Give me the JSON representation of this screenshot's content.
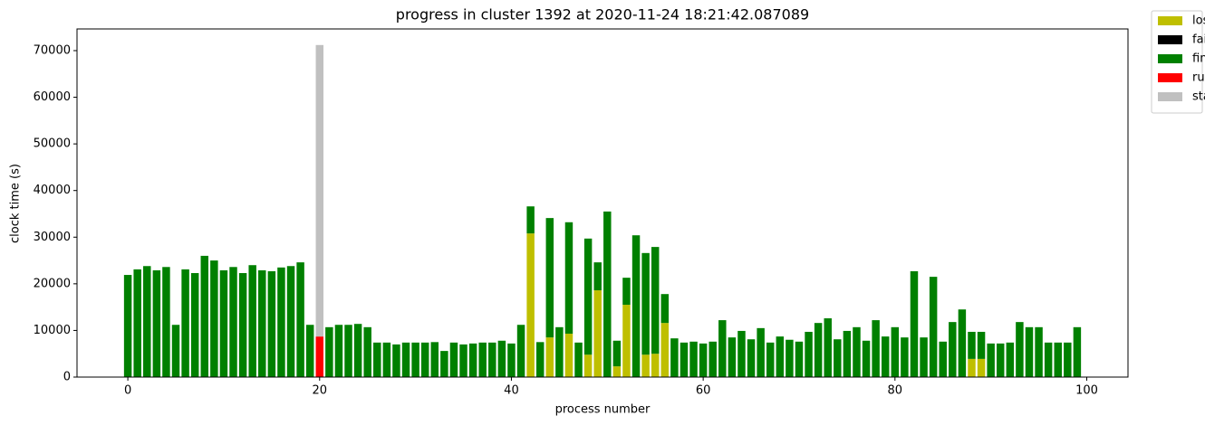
{
  "chart_data": {
    "type": "bar",
    "stacked": true,
    "title": "progress in cluster 1392 at 2020-11-24 18:21:42.087089",
    "xlabel": "process number",
    "ylabel": "clock time (s)",
    "x": [
      0,
      1,
      2,
      3,
      4,
      5,
      6,
      7,
      8,
      9,
      10,
      11,
      12,
      13,
      14,
      15,
      16,
      17,
      18,
      19,
      20,
      21,
      22,
      23,
      24,
      25,
      26,
      27,
      28,
      29,
      30,
      31,
      32,
      33,
      34,
      35,
      36,
      37,
      38,
      39,
      40,
      41,
      42,
      43,
      44,
      45,
      46,
      47,
      48,
      49,
      50,
      51,
      52,
      53,
      54,
      55,
      56,
      57,
      58,
      59,
      60,
      61,
      62,
      63,
      64,
      65,
      66,
      67,
      68,
      69,
      70,
      71,
      72,
      73,
      74,
      75,
      76,
      77,
      78,
      79,
      80,
      81,
      82,
      83,
      84,
      85,
      86,
      87,
      88,
      89,
      90,
      91,
      92,
      93,
      94,
      95,
      96,
      97,
      98,
      99
    ],
    "series": [
      {
        "name": "lost",
        "color": "#bfbf00",
        "values": [
          null,
          null,
          null,
          null,
          null,
          null,
          null,
          null,
          null,
          null,
          null,
          null,
          null,
          null,
          null,
          null,
          null,
          null,
          null,
          null,
          null,
          null,
          null,
          null,
          null,
          null,
          null,
          null,
          null,
          null,
          null,
          null,
          null,
          null,
          null,
          null,
          null,
          null,
          null,
          null,
          null,
          null,
          30800,
          null,
          8500,
          null,
          9300,
          null,
          4800,
          18600,
          null,
          2300,
          15500,
          null,
          4800,
          5000,
          11600,
          null,
          null,
          null,
          null,
          null,
          null,
          null,
          null,
          null,
          null,
          null,
          null,
          null,
          null,
          null,
          null,
          null,
          null,
          null,
          null,
          null,
          null,
          null,
          null,
          null,
          null,
          null,
          null,
          null,
          null,
          null,
          3900,
          3900,
          null,
          null,
          null,
          null,
          null,
          null,
          null,
          null,
          null,
          null
        ]
      },
      {
        "name": "failed",
        "color": "#000000",
        "values": [
          null,
          null,
          null,
          null,
          null,
          null,
          null,
          null,
          null,
          null,
          null,
          null,
          null,
          null,
          null,
          null,
          null,
          null,
          null,
          null,
          null,
          null,
          null,
          null,
          null,
          null,
          null,
          null,
          null,
          null,
          null,
          null,
          null,
          null,
          null,
          null,
          null,
          null,
          null,
          null,
          null,
          null,
          null,
          null,
          null,
          null,
          null,
          null,
          null,
          null,
          null,
          null,
          null,
          null,
          null,
          null,
          null,
          null,
          null,
          null,
          null,
          null,
          null,
          null,
          null,
          null,
          null,
          null,
          null,
          null,
          null,
          null,
          null,
          null,
          null,
          null,
          null,
          null,
          null,
          null,
          null,
          null,
          null,
          null,
          null,
          null,
          null,
          null,
          null,
          null,
          null,
          null,
          null,
          null,
          null,
          null,
          null,
          null,
          null,
          null
        ]
      },
      {
        "name": "finished",
        "color": "#008000",
        "values": [
          21900,
          23100,
          23800,
          22900,
          23600,
          11200,
          23100,
          22300,
          26000,
          25000,
          22900,
          23600,
          22300,
          24000,
          22900,
          22700,
          23500,
          23800,
          24600,
          11200,
          null,
          10700,
          11200,
          11200,
          11400,
          10700,
          7400,
          7400,
          7000,
          7400,
          7400,
          7400,
          7500,
          5600,
          7400,
          7000,
          7200,
          7400,
          7400,
          7800,
          7200,
          11200,
          5800,
          7500,
          25600,
          10700,
          23900,
          7400,
          24900,
          6000,
          35500,
          5500,
          5800,
          30400,
          21800,
          22900,
          6200,
          8300,
          7400,
          7600,
          7200,
          7600,
          12200,
          8500,
          9900,
          8100,
          10500,
          7400,
          8700,
          8000,
          7600,
          9700,
          11600,
          12600,
          8100,
          9900,
          10700,
          7800,
          12200,
          8700,
          10700,
          8500,
          22700,
          8500,
          21500,
          7600,
          11800,
          14500,
          5800,
          5800,
          7200,
          7200,
          7400,
          11800,
          10700,
          10700,
          7400,
          7400,
          7400,
          10700
        ]
      },
      {
        "name": "running",
        "color": "#ff0000",
        "values": [
          null,
          null,
          null,
          null,
          null,
          null,
          null,
          null,
          null,
          null,
          null,
          null,
          null,
          null,
          null,
          null,
          null,
          null,
          null,
          null,
          8700,
          null,
          null,
          null,
          null,
          null,
          null,
          null,
          null,
          null,
          null,
          null,
          null,
          null,
          null,
          null,
          null,
          null,
          null,
          null,
          null,
          null,
          null,
          null,
          null,
          null,
          null,
          null,
          null,
          null,
          null,
          null,
          null,
          null,
          null,
          null,
          null,
          null,
          null,
          null,
          null,
          null,
          null,
          null,
          null,
          null,
          null,
          null,
          null,
          null,
          null,
          null,
          null,
          null,
          null,
          null,
          null,
          null,
          null,
          null,
          null,
          null,
          null,
          null,
          null,
          null,
          null,
          null,
          null,
          null,
          null,
          null,
          null,
          null,
          null,
          null,
          null,
          null,
          null,
          null
        ]
      },
      {
        "name": "stalled",
        "color": "#c0c0c0",
        "values": [
          null,
          null,
          null,
          null,
          null,
          null,
          null,
          null,
          null,
          null,
          null,
          null,
          null,
          null,
          null,
          null,
          null,
          null,
          null,
          null,
          62500,
          null,
          null,
          null,
          null,
          null,
          null,
          null,
          null,
          null,
          null,
          null,
          null,
          null,
          null,
          null,
          null,
          null,
          null,
          null,
          null,
          null,
          null,
          null,
          null,
          null,
          null,
          null,
          null,
          null,
          null,
          null,
          null,
          null,
          null,
          null,
          null,
          null,
          null,
          null,
          null,
          null,
          null,
          null,
          null,
          null,
          null,
          null,
          null,
          null,
          null,
          null,
          null,
          null,
          null,
          null,
          null,
          null,
          null,
          null,
          null,
          null,
          null,
          null,
          null,
          null,
          null,
          null,
          null,
          null,
          null,
          null,
          null,
          null,
          null,
          null,
          null,
          null,
          null,
          null
        ]
      }
    ],
    "xlim": [
      -5.3,
      104.3
    ],
    "xticks": [
      0,
      20,
      40,
      60,
      80,
      100
    ],
    "ylim": [
      0,
      74650
    ],
    "yticks": [
      0,
      10000,
      20000,
      30000,
      40000,
      50000,
      60000,
      70000
    ],
    "legend": "upper right"
  }
}
